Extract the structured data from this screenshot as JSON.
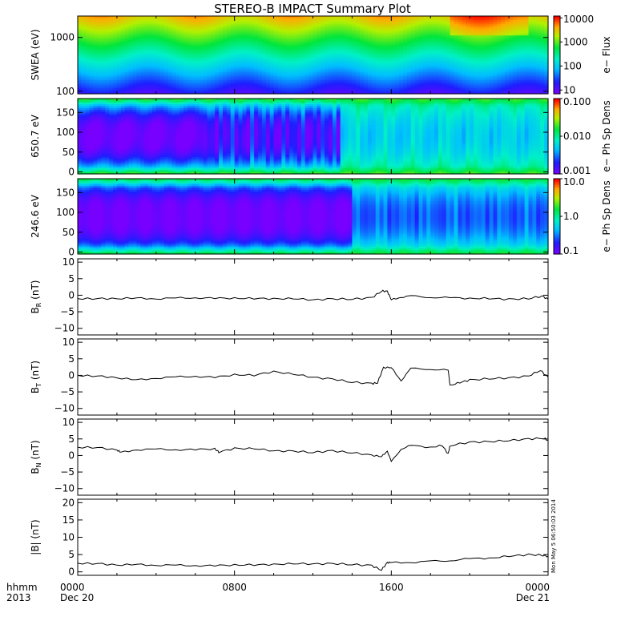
{
  "title": "STEREO-B IMPACT Summary Plot",
  "stamp": "Mon May  5 06:50:03 2014",
  "x_axis": {
    "row1": {
      "lead": "hhmm",
      "ticks": [
        "0000",
        "0800",
        "1600",
        "0000"
      ]
    },
    "row2": {
      "lead": "2013",
      "ticks": [
        "Dec 20",
        "",
        "",
        "Dec 21"
      ]
    },
    "hours": [
      0,
      8,
      16,
      24
    ]
  },
  "chart_data": [
    {
      "type": "heatmap",
      "id": "swea",
      "ylabel": "SWEA (eV)",
      "yscale": "log",
      "ylim": [
        90,
        2500
      ],
      "yticks": [
        {
          "v": 100,
          "label": "100"
        },
        {
          "v": 1000,
          "label": "1000"
        }
      ],
      "colorbar": {
        "label": "e− Flux",
        "scale": "log",
        "range": [
          7,
          12000
        ],
        "ticks": [
          {
            "v": 10,
            "label": "10"
          },
          {
            "v": 100,
            "label": "100"
          },
          {
            "v": 1000,
            "label": "1000"
          },
          {
            "v": 10000,
            "label": "10000"
          }
        ]
      }
    },
    {
      "type": "heatmap",
      "id": "pad650",
      "ylabel": "650.7 eV",
      "ylim": [
        -5,
        185
      ],
      "yticks": [
        {
          "v": 0,
          "label": "0"
        },
        {
          "v": 50,
          "label": "50"
        },
        {
          "v": 100,
          "label": "100"
        },
        {
          "v": 150,
          "label": "150"
        }
      ],
      "colorbar": {
        "label": "e− Ph Sp Dens",
        "scale": "log",
        "range": [
          0.001,
          0.1
        ],
        "ticks": [
          {
            "v": 0.001,
            "label": "0.001"
          },
          {
            "v": 0.01,
            "label": "0.010"
          },
          {
            "v": 0.1,
            "label": "0.100"
          }
        ]
      }
    },
    {
      "type": "heatmap",
      "id": "pad246",
      "ylabel": "246.6 eV",
      "ylim": [
        -5,
        185
      ],
      "yticks": [
        {
          "v": 0,
          "label": "0"
        },
        {
          "v": 50,
          "label": "50"
        },
        {
          "v": 100,
          "label": "100"
        },
        {
          "v": 150,
          "label": "150"
        }
      ],
      "colorbar": {
        "label": "e− Ph Sp Dens",
        "scale": "log",
        "range": [
          0.1,
          10
        ],
        "ticks": [
          {
            "v": 0.1,
            "label": "0.1"
          },
          {
            "v": 1,
            "label": "1.0"
          },
          {
            "v": 10,
            "label": "10.0"
          }
        ]
      }
    },
    {
      "type": "line",
      "id": "br",
      "ylabel": {
        "base": "B",
        "sub": "R",
        "unit": "(nT)"
      },
      "ylim": [
        -12,
        11
      ],
      "yticks": [
        {
          "v": -10,
          "label": "−10"
        },
        {
          "v": -5,
          "label": "−5"
        },
        {
          "v": 0,
          "label": "0"
        },
        {
          "v": 5,
          "label": "5"
        },
        {
          "v": 10,
          "label": "10"
        }
      ],
      "series": [
        {
          "x": [
            0,
            1,
            2,
            3,
            4,
            5,
            6,
            7,
            8,
            9,
            10,
            11,
            12,
            13,
            14,
            15,
            15.5,
            15.8,
            16,
            16.5,
            17,
            18,
            19,
            20,
            21,
            22,
            23,
            23.7,
            24
          ],
          "y": [
            -1,
            -1.1,
            -0.9,
            -1,
            -1,
            -0.9,
            -0.8,
            -0.9,
            -0.9,
            -1,
            -1,
            -1.1,
            -1.3,
            -1.2,
            -1.1,
            -0.8,
            1.2,
            1.3,
            -1.5,
            -0.5,
            -0.3,
            -0.6,
            -0.8,
            -0.9,
            -1,
            -1.2,
            -1,
            -0.3,
            -1.2
          ]
        }
      ]
    },
    {
      "type": "line",
      "id": "bt",
      "ylabel": {
        "base": "B",
        "sub": "T",
        "unit": "(nT)"
      },
      "ylim": [
        -12,
        11
      ],
      "yticks": [
        {
          "v": -10,
          "label": "−10"
        },
        {
          "v": -5,
          "label": "−5"
        },
        {
          "v": 0,
          "label": "0"
        },
        {
          "v": 5,
          "label": "5"
        },
        {
          "v": 10,
          "label": "10"
        }
      ],
      "series": [
        {
          "x": [
            0,
            1,
            2,
            3,
            4,
            5,
            6,
            7,
            8,
            9,
            10,
            11,
            12,
            13,
            14,
            15,
            15.3,
            15.6,
            16,
            16.5,
            17,
            18,
            18.9,
            19,
            19.5,
            20,
            21,
            22,
            23,
            23.6,
            24
          ],
          "y": [
            0,
            -0.3,
            -0.6,
            -1.5,
            -0.8,
            -0.5,
            -0.3,
            -0.6,
            0.2,
            0,
            1.2,
            0.3,
            -0.5,
            -1.2,
            -2,
            -2.5,
            -2.3,
            2.5,
            2.2,
            -1.5,
            2,
            1.9,
            1.5,
            -3,
            -2.2,
            -1.4,
            -1,
            -0.8,
            -0.2,
            1.5,
            -0.5
          ]
        }
      ]
    },
    {
      "type": "line",
      "id": "bn",
      "ylabel": {
        "base": "B",
        "sub": "N",
        "unit": "(nT)"
      },
      "ylim": [
        -12,
        11
      ],
      "yticks": [
        {
          "v": -10,
          "label": "−10"
        },
        {
          "v": -5,
          "label": "−5"
        },
        {
          "v": 0,
          "label": "0"
        },
        {
          "v": 5,
          "label": "5"
        },
        {
          "v": 10,
          "label": "10"
        }
      ],
      "series": [
        {
          "x": [
            0,
            1,
            2,
            2.2,
            3,
            4,
            5,
            6,
            7,
            7.2,
            8,
            9,
            10,
            11,
            12,
            13,
            14,
            15,
            15.5,
            15.8,
            16,
            16.5,
            17,
            18,
            18.6,
            18.9,
            19,
            20,
            21,
            22,
            23,
            23.8,
            24
          ],
          "y": [
            2.5,
            2.3,
            1.8,
            0.8,
            1.8,
            1.9,
            1.7,
            1.8,
            2,
            1,
            2.2,
            2,
            1.5,
            1.2,
            1,
            1.4,
            0.8,
            0.2,
            -0.5,
            1.5,
            -2,
            2,
            3,
            2.5,
            3,
            0.5,
            3,
            4,
            4.2,
            4.5,
            5,
            5.2,
            4.5
          ]
        }
      ]
    },
    {
      "type": "line",
      "id": "bmag",
      "ylabel": {
        "base": "|B|",
        "sub": "",
        "unit": "(nT)"
      },
      "ylim": [
        -1,
        21
      ],
      "yticks": [
        {
          "v": 0,
          "label": "0"
        },
        {
          "v": 5,
          "label": "5"
        },
        {
          "v": 10,
          "label": "10"
        },
        {
          "v": 15,
          "label": "15"
        },
        {
          "v": 20,
          "label": "20"
        }
      ],
      "series": [
        {
          "x": [
            0,
            1,
            2,
            3,
            4,
            5,
            6,
            7,
            8,
            9,
            10,
            11,
            12,
            13,
            14,
            15,
            15.5,
            15.8,
            16,
            17,
            18,
            19,
            20,
            21,
            22,
            23,
            23.7,
            24
          ],
          "y": [
            2.5,
            2.3,
            2.1,
            2,
            2,
            1.9,
            1.8,
            1.8,
            2,
            2,
            2.2,
            2.3,
            2.4,
            2.3,
            2.2,
            1.8,
            0.5,
            2.8,
            2.6,
            2.8,
            3,
            3.3,
            3.8,
            4,
            4.5,
            5,
            4.8,
            4.5
          ]
        }
      ]
    }
  ]
}
